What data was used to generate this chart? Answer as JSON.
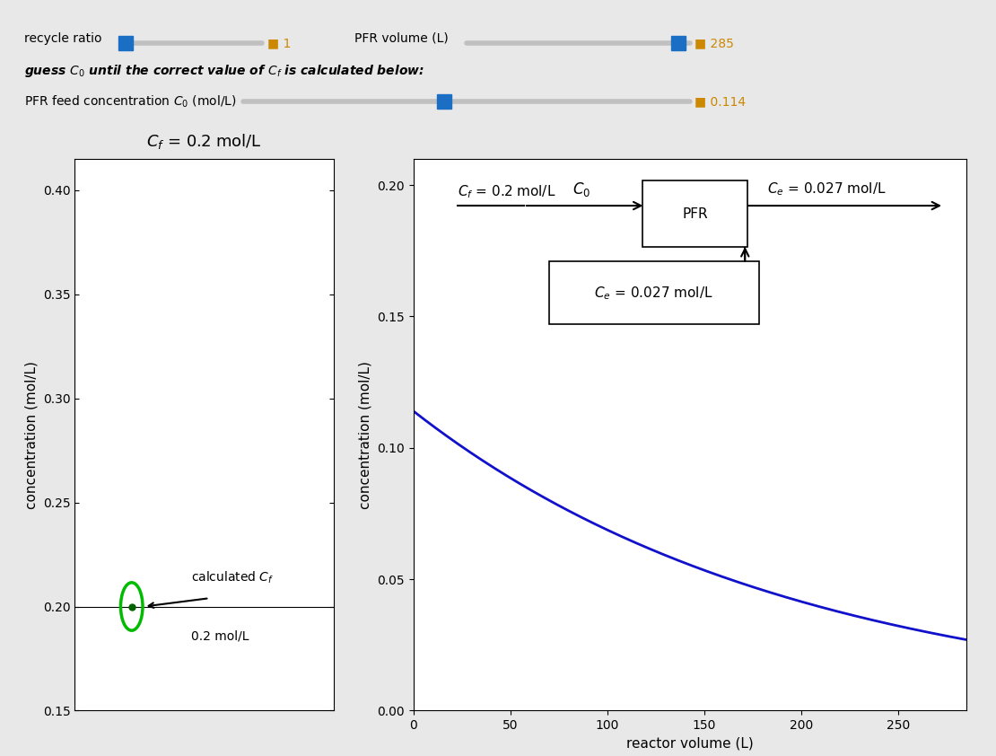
{
  "bg_outer": "#e8e8e8",
  "bg_slider": "#f5f5f5",
  "bg_plot_panel": "#ffffff",
  "panel_border": "#aaaaaa",
  "left_plot": {
    "ylabel": "concentration (mol/L)",
    "ylim": [
      0.15,
      0.415
    ],
    "yticks": [
      0.15,
      0.2,
      0.25,
      0.3,
      0.35,
      0.4
    ],
    "cf_value": 0.2,
    "dot_color": "#006400",
    "circle_color": "#00bb00",
    "title": "$C_f$ = 0.2 mol/L"
  },
  "right_plot": {
    "ylabel": "concentration (mol/L)",
    "xlabel": "reactor volume (L)",
    "ylim": [
      0.0,
      0.21
    ],
    "yticks": [
      0.0,
      0.05,
      0.1,
      0.15,
      0.2
    ],
    "xlim": [
      0,
      285
    ],
    "xticks": [
      0,
      50,
      100,
      150,
      200,
      250
    ],
    "C0": 0.114,
    "V_max": 285,
    "Ce": 0.027,
    "line_color": "#1111cc"
  }
}
